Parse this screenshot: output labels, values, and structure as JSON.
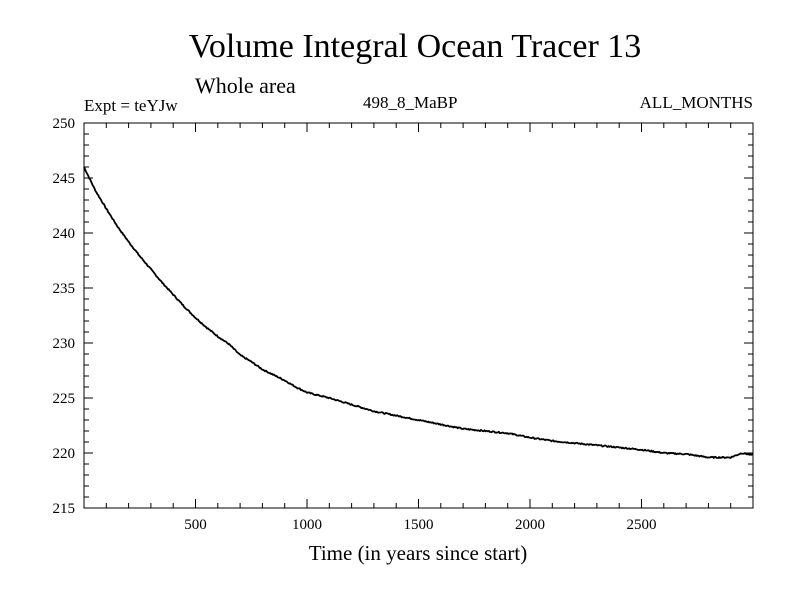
{
  "chart_data": {
    "type": "line",
    "title": "Volume Integral Ocean Tracer 13",
    "subtitle": "Whole area",
    "expt_label": "Expt = teYJw",
    "run_label": "498_8_MaBP",
    "months_label": "ALL_MONTHS",
    "xlabel": "Time (in years since start)",
    "ylabel": "",
    "xlim": [
      0,
      3000
    ],
    "ylim": [
      215,
      250
    ],
    "xticks": [
      500,
      1000,
      1500,
      2000,
      2500
    ],
    "xtick_labels": [
      "500",
      "1000",
      "1500",
      "2000",
      "2500"
    ],
    "yticks": [
      215,
      220,
      225,
      230,
      235,
      240,
      245,
      250
    ],
    "ytick_labels": [
      "215",
      "220",
      "225",
      "230",
      "235",
      "240",
      "245",
      "250"
    ],
    "grid": false,
    "series": [
      {
        "name": "Ocean Tracer 13",
        "color": "#000000",
        "x": [
          0,
          50,
          100,
          150,
          200,
          250,
          300,
          350,
          400,
          450,
          500,
          550,
          600,
          650,
          700,
          750,
          800,
          850,
          900,
          950,
          1000,
          1100,
          1200,
          1300,
          1400,
          1500,
          1600,
          1700,
          1800,
          1900,
          2000,
          2100,
          2200,
          2300,
          2400,
          2500,
          2600,
          2700,
          2800,
          2850,
          2900,
          2950,
          3000
        ],
        "values": [
          246.0,
          243.9,
          242.2,
          240.6,
          239.2,
          237.9,
          236.7,
          235.5,
          234.4,
          233.3,
          232.3,
          231.4,
          230.6,
          229.9,
          228.9,
          228.3,
          227.6,
          227.1,
          226.6,
          226.0,
          225.5,
          225.0,
          224.4,
          223.8,
          223.4,
          223.0,
          222.6,
          222.2,
          222.0,
          221.8,
          221.4,
          221.1,
          220.9,
          220.7,
          220.5,
          220.3,
          220.0,
          219.9,
          219.6,
          219.6,
          219.6,
          220.0,
          219.8
        ]
      }
    ]
  }
}
